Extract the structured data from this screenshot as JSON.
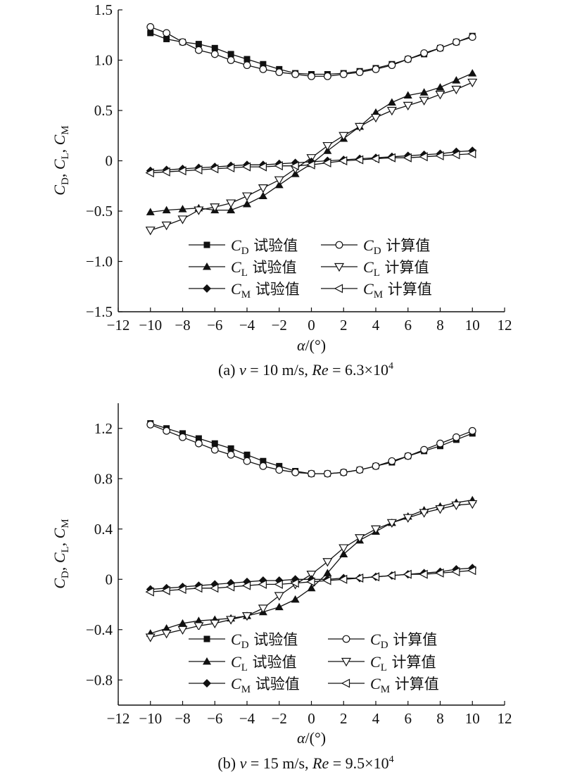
{
  "chart_data": [
    {
      "type": "line",
      "caption": "(a) v = 10 m/s, Re = 6.3×10⁴",
      "caption_parts": {
        "prefix": "(a) ",
        "v_sym": "v",
        "v_text": " = 10 m/s, ",
        "re_sym": "Re",
        "re_text": " = 6.3×10",
        "re_exp": "4"
      },
      "xlabel": "α/(°)",
      "ylabel": "CD, CL, CM",
      "xlim": [
        -12,
        12
      ],
      "ylim": [
        -1.5,
        1.5
      ],
      "xticks": [
        "−12",
        "−10",
        "−8",
        "−6",
        "−4",
        "−2",
        "0",
        "2",
        "4",
        "6",
        "8",
        "10",
        "12"
      ],
      "yticks": [
        "−1.5",
        "−1.0",
        "−0.5",
        "0",
        "0.5",
        "1.0",
        "1.5"
      ],
      "grid": false,
      "legend_position": "center-bottom",
      "x": [
        -10,
        -9,
        -8,
        -7,
        -6,
        -5,
        -4,
        -3,
        -2,
        -1,
        0,
        1,
        2,
        3,
        4,
        5,
        6,
        7,
        8,
        9,
        10
      ],
      "series": [
        {
          "name": "CD 试验值",
          "marker": "square-filled",
          "values": [
            1.27,
            1.21,
            1.18,
            1.16,
            1.12,
            1.06,
            1.01,
            0.96,
            0.91,
            0.87,
            0.86,
            0.86,
            0.87,
            0.89,
            0.92,
            0.96,
            1.01,
            1.06,
            1.12,
            1.18,
            1.24
          ]
        },
        {
          "name": "CD 计算值",
          "marker": "circle-open",
          "values": [
            1.33,
            1.27,
            1.18,
            1.1,
            1.06,
            1.0,
            0.95,
            0.91,
            0.88,
            0.86,
            0.84,
            0.84,
            0.86,
            0.88,
            0.91,
            0.95,
            1.01,
            1.07,
            1.12,
            1.18,
            1.23
          ]
        },
        {
          "name": "CL 试验值",
          "marker": "triangle-up-filled",
          "values": [
            -0.51,
            -0.49,
            -0.48,
            -0.47,
            -0.49,
            -0.49,
            -0.43,
            -0.35,
            -0.24,
            -0.13,
            -0.03,
            0.1,
            0.22,
            0.34,
            0.48,
            0.58,
            0.65,
            0.68,
            0.73,
            0.8,
            0.87
          ]
        },
        {
          "name": "CL 计算值",
          "marker": "triangle-down-open",
          "values": [
            -0.69,
            -0.64,
            -0.58,
            -0.49,
            -0.46,
            -0.42,
            -0.35,
            -0.27,
            -0.19,
            -0.08,
            0.03,
            0.15,
            0.25,
            0.34,
            0.43,
            0.5,
            0.55,
            0.6,
            0.66,
            0.71,
            0.78
          ]
        },
        {
          "name": "CM 试验值",
          "marker": "diamond-filled",
          "values": [
            -0.1,
            -0.09,
            -0.08,
            -0.07,
            -0.06,
            -0.05,
            -0.04,
            -0.04,
            -0.03,
            -0.02,
            -0.01,
            0.0,
            0.01,
            0.02,
            0.03,
            0.04,
            0.05,
            0.06,
            0.07,
            0.09,
            0.1
          ]
        },
        {
          "name": "CM 计算值",
          "marker": "triangle-left-open",
          "values": [
            -0.12,
            -0.11,
            -0.1,
            -0.09,
            -0.08,
            -0.07,
            -0.06,
            -0.06,
            -0.05,
            -0.05,
            -0.04,
            -0.02,
            0.0,
            0.01,
            0.02,
            0.03,
            0.03,
            0.04,
            0.05,
            0.06,
            0.07
          ]
        }
      ]
    },
    {
      "type": "line",
      "caption": "(b) v = 15 m/s, Re = 9.5×10⁴",
      "caption_parts": {
        "prefix": "(b) ",
        "v_sym": "v",
        "v_text": " = 15 m/s, ",
        "re_sym": "Re",
        "re_text": " = 9.5×10",
        "re_exp": "4"
      },
      "xlabel": "α/(°)",
      "ylabel": "CD, CL, CM",
      "xlim": [
        -12,
        12
      ],
      "ylim": [
        -1.0,
        1.4
      ],
      "xticks": [
        "−12",
        "−10",
        "−8",
        "−6",
        "−4",
        "−2",
        "0",
        "2",
        "4",
        "6",
        "8",
        "10",
        "12"
      ],
      "yticks": [
        "−0.8",
        "−0.4",
        "0",
        "0.4",
        "0.8",
        "1.2"
      ],
      "grid": false,
      "legend_position": "center-bottom",
      "x": [
        -10,
        -9,
        -8,
        -7,
        -6,
        -5,
        -4,
        -3,
        -2,
        -1,
        0,
        1,
        2,
        3,
        4,
        5,
        6,
        7,
        8,
        9,
        10
      ],
      "series": [
        {
          "name": "CD 试验值",
          "marker": "square-filled",
          "values": [
            1.24,
            1.2,
            1.16,
            1.12,
            1.08,
            1.04,
            0.99,
            0.94,
            0.9,
            0.86,
            0.84,
            0.84,
            0.85,
            0.87,
            0.9,
            0.93,
            0.98,
            1.02,
            1.06,
            1.11,
            1.16
          ]
        },
        {
          "name": "CD 计算值",
          "marker": "circle-open",
          "values": [
            1.23,
            1.18,
            1.13,
            1.08,
            1.03,
            0.99,
            0.94,
            0.9,
            0.87,
            0.85,
            0.84,
            0.84,
            0.85,
            0.87,
            0.9,
            0.94,
            0.98,
            1.03,
            1.08,
            1.13,
            1.18
          ]
        },
        {
          "name": "CL 试验值",
          "marker": "triangle-up-filled",
          "values": [
            -0.43,
            -0.39,
            -0.35,
            -0.33,
            -0.32,
            -0.31,
            -0.29,
            -0.26,
            -0.22,
            -0.16,
            -0.07,
            0.05,
            0.2,
            0.31,
            0.38,
            0.45,
            0.5,
            0.55,
            0.58,
            0.61,
            0.63
          ]
        },
        {
          "name": "CL 计算值",
          "marker": "triangle-down-open",
          "values": [
            -0.46,
            -0.43,
            -0.4,
            -0.37,
            -0.35,
            -0.32,
            -0.29,
            -0.23,
            -0.13,
            -0.04,
            0.04,
            0.14,
            0.25,
            0.33,
            0.4,
            0.45,
            0.49,
            0.53,
            0.56,
            0.59,
            0.6
          ]
        },
        {
          "name": "CM 试验值",
          "marker": "diamond-filled",
          "values": [
            -0.08,
            -0.07,
            -0.06,
            -0.05,
            -0.04,
            -0.03,
            -0.02,
            -0.01,
            -0.01,
            0.0,
            0.0,
            0.0,
            0.01,
            0.01,
            0.02,
            0.03,
            0.04,
            0.05,
            0.06,
            0.08,
            0.09
          ]
        },
        {
          "name": "CM 计算值",
          "marker": "triangle-left-open",
          "values": [
            -0.1,
            -0.09,
            -0.08,
            -0.07,
            -0.07,
            -0.06,
            -0.05,
            -0.04,
            -0.04,
            -0.03,
            -0.02,
            -0.01,
            0.0,
            0.01,
            0.02,
            0.03,
            0.04,
            0.04,
            0.05,
            0.06,
            0.07
          ]
        }
      ]
    }
  ],
  "legend_text": [
    {
      "sym": "C",
      "sub": "D",
      "label": " 试验值"
    },
    {
      "sym": "C",
      "sub": "D",
      "label": " 计算值"
    },
    {
      "sym": "C",
      "sub": "L",
      "label": " 试验值"
    },
    {
      "sym": "C",
      "sub": "L",
      "label": " 计算值"
    },
    {
      "sym": "C",
      "sub": "M",
      "label": " 试验值"
    },
    {
      "sym": "C",
      "sub": "M",
      "label": " 计算值"
    }
  ],
  "ylabel_parts": [
    {
      "sym": "C",
      "sub": "D",
      "sep": ", "
    },
    {
      "sym": "C",
      "sub": "L",
      "sep": ", "
    },
    {
      "sym": "C",
      "sub": "M",
      "sep": ""
    }
  ],
  "xlabel_parts": {
    "sym": "α",
    "rest": "/(°)"
  }
}
